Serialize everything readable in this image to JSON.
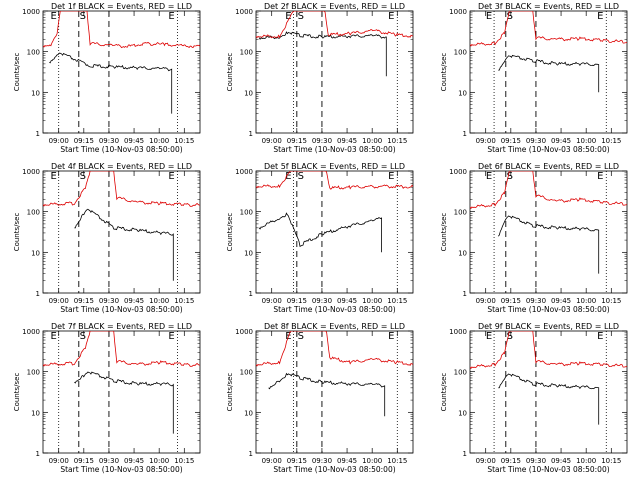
{
  "figure": {
    "colors": {
      "events": "#000000",
      "lld": "#dd0000",
      "axes": "#000000",
      "background": "#ffffff"
    },
    "ylabel": "Counts/sec",
    "xlabel": "Start Time (10-Nov-03 08:50:00)",
    "marker_labels": {
      "start": "E",
      "saa": "S",
      "end": "E"
    }
  },
  "chart_data": [
    {
      "type": "line",
      "title": "Det 1f BLACK = Events, RED = LLD",
      "xlabel": "Start Time (10-Nov-03 08:50:00)",
      "ylabel": "Counts/sec",
      "yscale": "log",
      "ylim": [
        1,
        1000
      ],
      "yticks": [
        "1",
        "10",
        "100",
        "1000"
      ],
      "xticks": [
        "09:00",
        "09:15",
        "09:30",
        "09:45",
        "10:00",
        "10:15"
      ],
      "markers": {
        "dotted": [
          "09:00",
          "10:11"
        ],
        "dashed": [
          "09:12",
          "09:30"
        ]
      },
      "series": [
        {
          "name": "Events",
          "points": [
            [
              0.04,
              55
            ],
            [
              0.07,
              70
            ],
            [
              0.1,
              95
            ],
            [
              0.3,
              45
            ],
            [
              0.45,
              42
            ],
            [
              0.6,
              40
            ],
            [
              0.75,
              38
            ],
            [
              0.82,
              37
            ]
          ],
          "drop": [
            0.82,
            3
          ]
        },
        {
          "name": "LLD",
          "points": [
            [
              0.0,
              140
            ],
            [
              0.05,
              150
            ],
            [
              0.09,
              300
            ],
            [
              0.11,
              1000
            ],
            [
              0.28,
              1000
            ],
            [
              0.3,
              160
            ],
            [
              0.45,
              140
            ],
            [
              0.55,
              135
            ],
            [
              0.65,
              160
            ],
            [
              0.78,
              150
            ],
            [
              0.9,
              140
            ],
            [
              1.0,
              135
            ]
          ]
        }
      ]
    },
    {
      "type": "line",
      "title": "Det 2f BLACK = Events, RED = LLD",
      "xlabel": "Start Time (10-Nov-03 08:50:00)",
      "ylabel": "Counts/sec",
      "yscale": "log",
      "ylim": [
        1,
        1000
      ],
      "yticks": [
        "1",
        "10",
        "100",
        "1000"
      ],
      "xticks": [
        "09:00",
        "09:15",
        "09:30",
        "09:45",
        "10:00",
        "10:15"
      ],
      "markers": {
        "dotted": [
          "09:13",
          "10:15"
        ],
        "dashed": [
          "09:15",
          "09:30"
        ]
      },
      "series": [
        {
          "name": "Events",
          "points": [
            [
              0.02,
              220
            ],
            [
              0.15,
              230
            ],
            [
              0.2,
              300
            ],
            [
              0.28,
              250
            ],
            [
              0.42,
              230
            ],
            [
              0.6,
              240
            ],
            [
              0.75,
              245
            ],
            [
              0.83,
              230
            ]
          ],
          "drop": [
            0.83,
            25
          ]
        },
        {
          "name": "LLD",
          "points": [
            [
              0.0,
              240
            ],
            [
              0.15,
              240
            ],
            [
              0.24,
              1000
            ],
            [
              0.44,
              1000
            ],
            [
              0.46,
              260
            ],
            [
              0.6,
              280
            ],
            [
              0.75,
              330
            ],
            [
              0.9,
              260
            ],
            [
              1.0,
              240
            ]
          ]
        }
      ]
    },
    {
      "type": "line",
      "title": "Det 3f BLACK = Events, RED = LLD",
      "xlabel": "Start Time (10-Nov-03 08:50:00)",
      "ylabel": "Counts/sec",
      "yscale": "log",
      "ylim": [
        1,
        1000
      ],
      "yticks": [
        "1",
        "10",
        "100",
        "1000"
      ],
      "xticks": [
        "09:00",
        "09:15",
        "09:30",
        "09:45",
        "10:00",
        "10:15"
      ],
      "markers": {
        "dotted": [
          "09:05",
          "10:12"
        ],
        "dashed": [
          "09:12",
          "09:30"
        ]
      },
      "series": [
        {
          "name": "Events",
          "points": [
            [
              0.18,
              35
            ],
            [
              0.22,
              60
            ],
            [
              0.24,
              80
            ],
            [
              0.4,
              60
            ],
            [
              0.55,
              50
            ],
            [
              0.7,
              50
            ],
            [
              0.82,
              48
            ]
          ],
          "drop": [
            0.82,
            10
          ]
        },
        {
          "name": "LLD",
          "points": [
            [
              0.0,
              150
            ],
            [
              0.16,
              160
            ],
            [
              0.22,
              300
            ],
            [
              0.25,
              1000
            ],
            [
              0.4,
              1000
            ],
            [
              0.42,
              220
            ],
            [
              0.55,
              200
            ],
            [
              0.7,
              210
            ],
            [
              0.85,
              190
            ],
            [
              1.0,
              170
            ]
          ]
        }
      ]
    },
    {
      "type": "line",
      "title": "Det 4f BLACK = Events, RED = LLD",
      "xlabel": "Start Time (10-Nov-03 08:50:00)",
      "ylabel": "Counts/sec",
      "yscale": "log",
      "ylim": [
        1,
        1000
      ],
      "yticks": [
        "1",
        "10",
        "100",
        "1000"
      ],
      "xticks": [
        "09:00",
        "09:15",
        "09:30",
        "09:45",
        "10:00",
        "10:15"
      ],
      "markers": {
        "dotted": [
          "09:00",
          "10:11"
        ],
        "dashed": [
          "09:12",
          "09:30"
        ]
      },
      "series": [
        {
          "name": "Events",
          "points": [
            [
              0.2,
              40
            ],
            [
              0.26,
              90
            ],
            [
              0.28,
              120
            ],
            [
              0.45,
              40
            ],
            [
              0.6,
              35
            ],
            [
              0.75,
              30
            ],
            [
              0.83,
              28
            ]
          ],
          "drop": [
            0.83,
            2
          ]
        },
        {
          "name": "LLD",
          "points": [
            [
              0.0,
              150
            ],
            [
              0.2,
              160
            ],
            [
              0.27,
              400
            ],
            [
              0.3,
              1000
            ],
            [
              0.45,
              1000
            ],
            [
              0.47,
              220
            ],
            [
              0.6,
              170
            ],
            [
              0.75,
              160
            ],
            [
              0.9,
              150
            ],
            [
              1.0,
              145
            ]
          ]
        }
      ]
    },
    {
      "type": "line",
      "title": "Det 5f BLACK = Events, RED = LLD",
      "xlabel": "Start Time (10-Nov-03 08:50:00)",
      "ylabel": "Counts/sec",
      "yscale": "log",
      "ylim": [
        1,
        1000
      ],
      "yticks": [
        "1",
        "10",
        "100",
        "1000"
      ],
      "xticks": [
        "09:00",
        "09:15",
        "09:30",
        "09:45",
        "10:00",
        "10:15"
      ],
      "markers": {
        "dotted": [
          "09:13",
          "10:15"
        ],
        "dashed": [
          "09:15",
          "09:30"
        ]
      },
      "series": [
        {
          "name": "Events",
          "points": [
            [
              0.02,
              40
            ],
            [
              0.15,
              70
            ],
            [
              0.2,
              90
            ],
            [
              0.28,
              15
            ],
            [
              0.42,
              28
            ],
            [
              0.6,
              45
            ],
            [
              0.75,
              60
            ],
            [
              0.8,
              70
            ]
          ],
          "drop": [
            0.8,
            10
          ]
        },
        {
          "name": "LLD",
          "points": [
            [
              0.0,
              420
            ],
            [
              0.15,
              430
            ],
            [
              0.22,
              1000
            ],
            [
              0.45,
              1000
            ],
            [
              0.47,
              380
            ],
            [
              0.6,
              400
            ],
            [
              0.8,
              420
            ],
            [
              1.0,
              410
            ]
          ]
        }
      ]
    },
    {
      "type": "line",
      "title": "Det 6f BLACK = Events, RED = LLD",
      "xlabel": "Start Time (10-Nov-03 08:50:00)",
      "ylabel": "Counts/sec",
      "yscale": "log",
      "ylim": [
        1,
        1000
      ],
      "yticks": [
        "1",
        "10",
        "100",
        "1000"
      ],
      "xticks": [
        "09:00",
        "09:15",
        "09:30",
        "09:45",
        "10:00",
        "10:15"
      ],
      "markers": {
        "dotted": [
          "09:05",
          "10:12"
        ],
        "dashed": [
          "09:12",
          "09:30"
        ]
      },
      "series": [
        {
          "name": "Events",
          "points": [
            [
              0.18,
              25
            ],
            [
              0.22,
              60
            ],
            [
              0.24,
              80
            ],
            [
              0.4,
              45
            ],
            [
              0.55,
              40
            ],
            [
              0.7,
              38
            ],
            [
              0.82,
              35
            ]
          ],
          "drop": [
            0.82,
            3
          ]
        },
        {
          "name": "LLD",
          "points": [
            [
              0.0,
              130
            ],
            [
              0.16,
              150
            ],
            [
              0.22,
              300
            ],
            [
              0.25,
              1000
            ],
            [
              0.4,
              1000
            ],
            [
              0.42,
              250
            ],
            [
              0.55,
              180
            ],
            [
              0.7,
              200
            ],
            [
              0.85,
              170
            ],
            [
              1.0,
              150
            ]
          ]
        }
      ]
    },
    {
      "type": "line",
      "title": "Det 7f BLACK = Events, RED = LLD",
      "xlabel": "Start Time (10-Nov-03 08:50:00)",
      "ylabel": "Counts/sec",
      "yscale": "log",
      "ylim": [
        1,
        1000
      ],
      "yticks": [
        "1",
        "10",
        "100",
        "1000"
      ],
      "xticks": [
        "09:00",
        "09:15",
        "09:30",
        "09:45",
        "10:00",
        "10:15"
      ],
      "markers": {
        "dotted": [
          "09:00",
          "10:11"
        ],
        "dashed": [
          "09:12",
          "09:30"
        ]
      },
      "series": [
        {
          "name": "Events",
          "points": [
            [
              0.2,
              55
            ],
            [
              0.26,
              80
            ],
            [
              0.28,
              100
            ],
            [
              0.45,
              60
            ],
            [
              0.6,
              50
            ],
            [
              0.75,
              50
            ],
            [
              0.83,
              48
            ]
          ],
          "drop": [
            0.83,
            3
          ]
        },
        {
          "name": "LLD",
          "points": [
            [
              0.0,
              150
            ],
            [
              0.2,
              160
            ],
            [
              0.27,
              400
            ],
            [
              0.3,
              1000
            ],
            [
              0.45,
              1000
            ],
            [
              0.47,
              180
            ],
            [
              0.6,
              150
            ],
            [
              0.75,
              170
            ],
            [
              0.9,
              150
            ],
            [
              1.0,
              145
            ]
          ]
        }
      ]
    },
    {
      "type": "line",
      "title": "Det 8f BLACK = Events, RED = LLD",
      "xlabel": "Start Time (10-Nov-03 08:50:00)",
      "ylabel": "Counts/sec",
      "yscale": "log",
      "ylim": [
        1,
        1000
      ],
      "yticks": [
        "1",
        "10",
        "100",
        "1000"
      ],
      "xticks": [
        "09:00",
        "09:15",
        "09:30",
        "09:45",
        "10:00",
        "10:15"
      ],
      "markers": {
        "dotted": [
          "09:13",
          "10:15"
        ],
        "dashed": [
          "09:15",
          "09:30"
        ]
      },
      "series": [
        {
          "name": "Events",
          "points": [
            [
              0.08,
              40
            ],
            [
              0.15,
              60
            ],
            [
              0.2,
              90
            ],
            [
              0.28,
              70
            ],
            [
              0.42,
              55
            ],
            [
              0.6,
              50
            ],
            [
              0.75,
              48
            ],
            [
              0.82,
              45
            ]
          ],
          "drop": [
            0.82,
            8
          ]
        },
        {
          "name": "LLD",
          "points": [
            [
              0.0,
              150
            ],
            [
              0.15,
              170
            ],
            [
              0.22,
              1000
            ],
            [
              0.45,
              1000
            ],
            [
              0.47,
              220
            ],
            [
              0.6,
              170
            ],
            [
              0.75,
              200
            ],
            [
              0.9,
              170
            ],
            [
              1.0,
              150
            ]
          ]
        }
      ]
    },
    {
      "type": "line",
      "title": "Det 9f BLACK = Events, RED = LLD",
      "xlabel": "Start Time (10-Nov-03 08:50:00)",
      "ylabel": "Counts/sec",
      "yscale": "log",
      "ylim": [
        1,
        1000
      ],
      "yticks": [
        "1",
        "10",
        "100",
        "1000"
      ],
      "xticks": [
        "09:00",
        "09:15",
        "09:30",
        "09:45",
        "10:00",
        "10:15"
      ],
      "markers": {
        "dotted": [
          "09:05",
          "10:12"
        ],
        "dashed": [
          "09:12",
          "09:30"
        ]
      },
      "series": [
        {
          "name": "Events",
          "points": [
            [
              0.18,
              40
            ],
            [
              0.22,
              70
            ],
            [
              0.24,
              90
            ],
            [
              0.4,
              50
            ],
            [
              0.55,
              45
            ],
            [
              0.7,
              42
            ],
            [
              0.82,
              40
            ]
          ],
          "drop": [
            0.82,
            5
          ]
        },
        {
          "name": "LLD",
          "points": [
            [
              0.0,
              130
            ],
            [
              0.16,
              150
            ],
            [
              0.22,
              300
            ],
            [
              0.25,
              1000
            ],
            [
              0.4,
              1000
            ],
            [
              0.42,
              180
            ],
            [
              0.55,
              150
            ],
            [
              0.7,
              160
            ],
            [
              0.85,
              150
            ],
            [
              1.0,
              135
            ]
          ]
        }
      ]
    }
  ]
}
